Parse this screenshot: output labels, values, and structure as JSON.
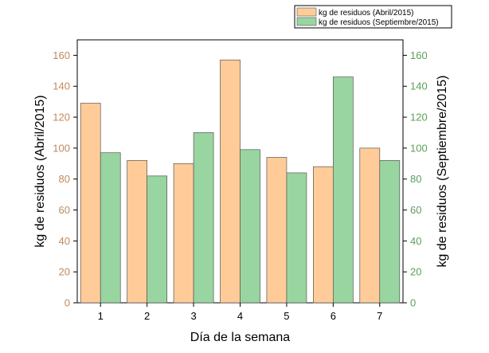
{
  "chart_data": {
    "type": "bar",
    "categories": [
      "1",
      "2",
      "3",
      "4",
      "5",
      "6",
      "7"
    ],
    "series": [
      {
        "name": "kg de residuos (Abril/2015)",
        "values": [
          129,
          92,
          90,
          157,
          94,
          88,
          100
        ],
        "axis": "left",
        "color": "#ffcc99"
      },
      {
        "name": "kg de residuos (Septiembre/2015)",
        "values": [
          97,
          82,
          110,
          99,
          84,
          146,
          92
        ],
        "axis": "right",
        "color": "#99d5a0"
      }
    ],
    "xlabel": "Día de la semana",
    "ylabel": "kg de residuos (Abril/2015)",
    "y2label": "kg de residuos (Septiembre/2015)",
    "ylim": [
      0,
      170
    ],
    "y2lim": [
      0,
      170
    ],
    "yticks": [
      0,
      20,
      40,
      60,
      80,
      100,
      120,
      140,
      160
    ],
    "legend_position": "top-right",
    "grid": false,
    "colors": {
      "left_tick_color": "#c08a5e",
      "right_tick_color": "#5aa05a",
      "bar_stroke": "#555555"
    }
  }
}
